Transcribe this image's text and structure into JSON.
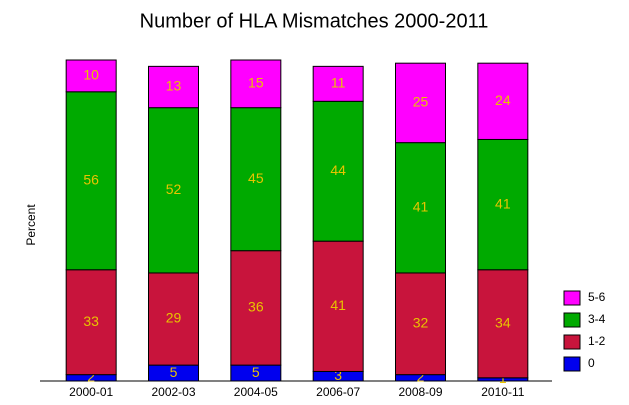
{
  "chart_data": {
    "type": "stacked-bar",
    "title": "Number of HLA Mismatches 2000-2011",
    "y_label": "Percent",
    "categories": [
      "2000-01",
      "2002-03",
      "2004-05",
      "2006-07",
      "2008-09",
      "2010-11"
    ],
    "series": [
      {
        "name": "0",
        "color": "#0000ee",
        "values": [
          2,
          5,
          5,
          3,
          2,
          1
        ]
      },
      {
        "name": "1-2",
        "color": "#c8143c",
        "values": [
          33,
          29,
          36,
          41,
          32,
          34
        ]
      },
      {
        "name": "3-4",
        "color": "#00aa00",
        "values": [
          56,
          52,
          45,
          44,
          41,
          41
        ]
      },
      {
        "name": "5-6",
        "color": "#ff00ff",
        "values": [
          10,
          13,
          15,
          11,
          25,
          24
        ]
      }
    ],
    "ylim": [
      0,
      101
    ],
    "label_color": "#e8c400"
  }
}
